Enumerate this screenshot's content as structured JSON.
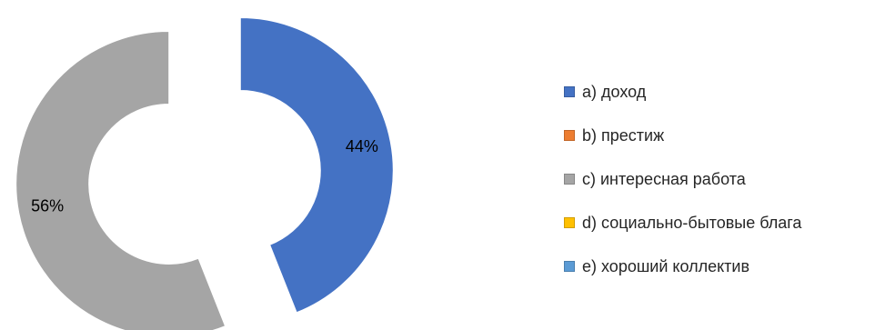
{
  "chart_data": {
    "type": "pie",
    "subtype": "exploded-doughnut",
    "title": "",
    "series": [
      {
        "category": "a) доход",
        "value": 44,
        "label": "44%",
        "color": "#4472C4"
      },
      {
        "category": "b) престиж",
        "value": 0,
        "label": "",
        "color": "#ED7D31"
      },
      {
        "category": "c) интересная работа",
        "value": 56,
        "label": "56%",
        "color": "#A5A5A5"
      },
      {
        "category": "d) социально-бытовые блага",
        "value": 0,
        "label": "",
        "color": "#FFC000"
      },
      {
        "category": "e) хороший коллектив",
        "value": 0,
        "label": "",
        "color": "#5B9BD5"
      }
    ],
    "legend_position": "right"
  }
}
